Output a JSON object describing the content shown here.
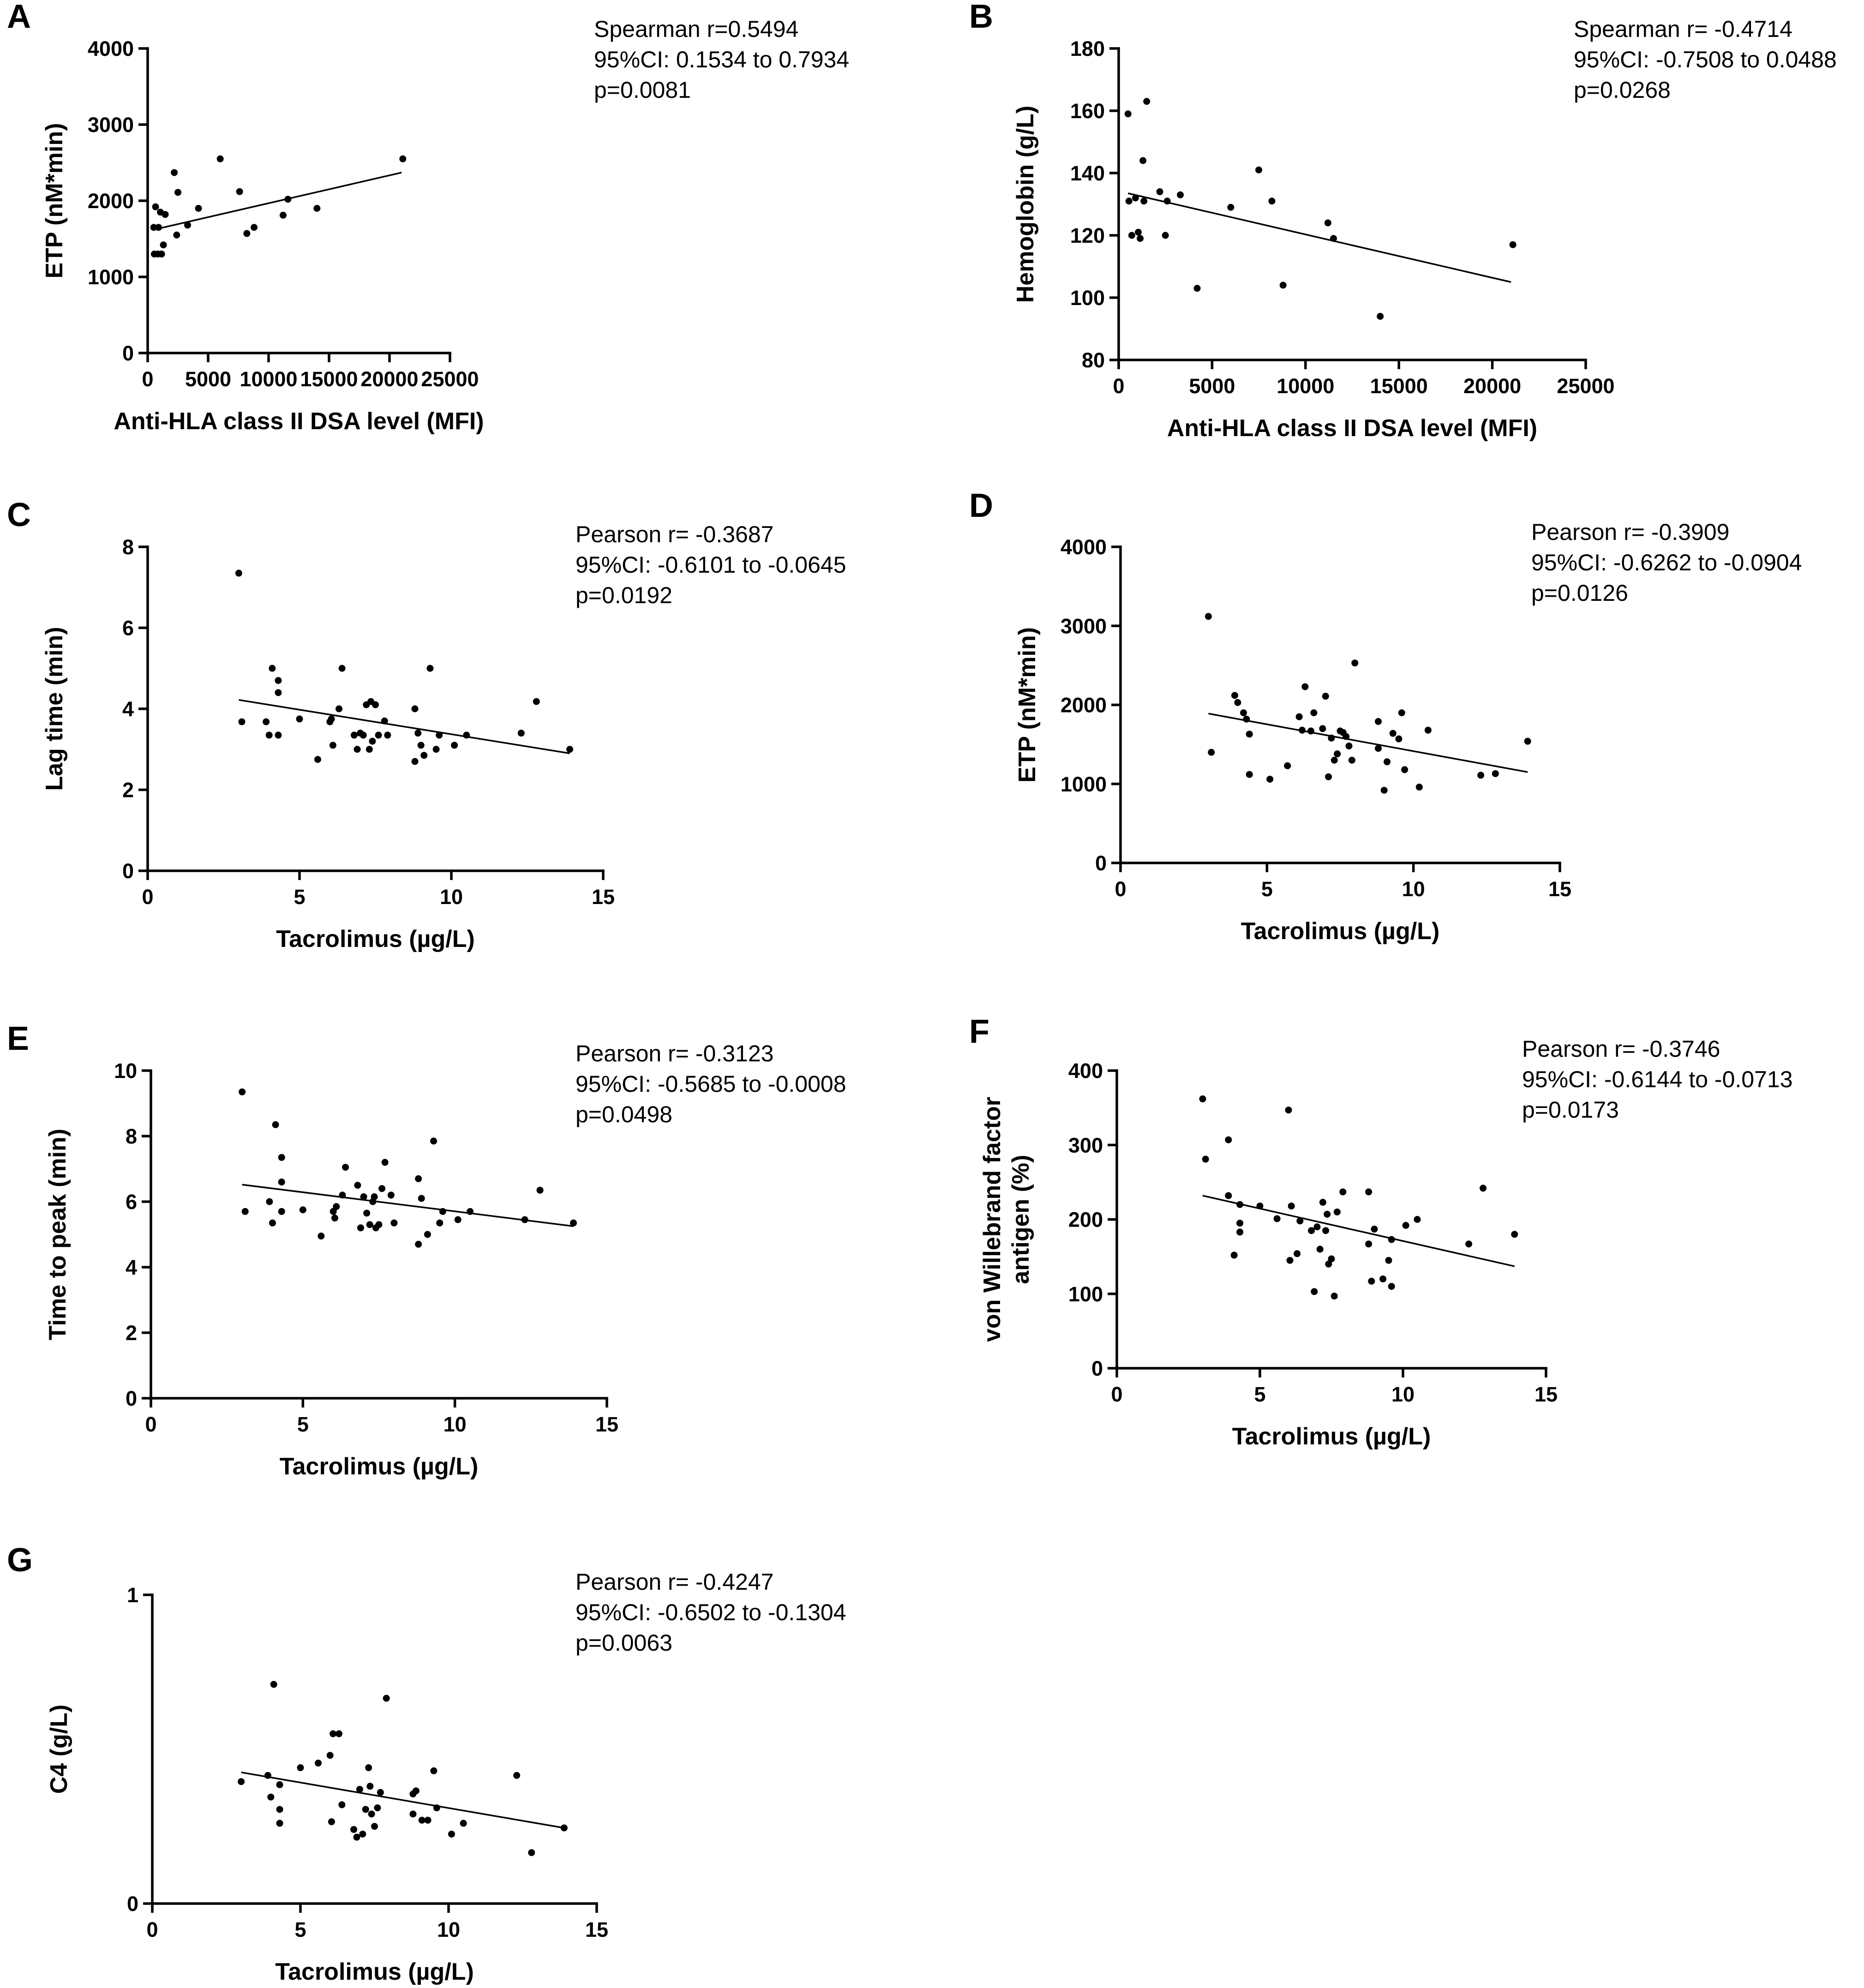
{
  "chart_data": [
    {
      "type": "scatter",
      "panel": "A",
      "xlabel": "Anti-HLA class II DSA level (MFI)",
      "ylabel": "ETP (nM*min)",
      "xlim": [
        0,
        25000
      ],
      "ylim": [
        0,
        4000
      ],
      "xticks": [
        0,
        5000,
        10000,
        15000,
        20000,
        25000
      ],
      "yticks": [
        0,
        1000,
        2000,
        3000,
        4000
      ],
      "stats": [
        "Spearman r=0.5494",
        "95%CI: 0.1534 to 0.7934",
        "p=0.0081"
      ],
      "fit": [
        [
          500,
          1620
        ],
        [
          21000,
          2370
        ]
      ],
      "points": [
        [
          500,
          1650
        ],
        [
          550,
          1300
        ],
        [
          650,
          1920
        ],
        [
          850,
          1300
        ],
        [
          900,
          1650
        ],
        [
          1050,
          1850
        ],
        [
          1150,
          1300
        ],
        [
          1300,
          1420
        ],
        [
          1450,
          1820
        ],
        [
          2200,
          2370
        ],
        [
          2500,
          2110
        ],
        [
          2400,
          1550
        ],
        [
          3300,
          1680
        ],
        [
          4200,
          1900
        ],
        [
          6000,
          2550
        ],
        [
          7600,
          2120
        ],
        [
          8200,
          1570
        ],
        [
          8800,
          1650
        ],
        [
          11200,
          1810
        ],
        [
          11600,
          2020
        ],
        [
          14000,
          1900
        ],
        [
          21100,
          2550
        ]
      ]
    },
    {
      "type": "scatter",
      "panel": "B",
      "xlabel": "Anti-HLA class II DSA level (MFI)",
      "ylabel": "Hemoglobin (g/L)",
      "xlim": [
        0,
        25000
      ],
      "ylim": [
        80,
        180
      ],
      "xticks": [
        0,
        5000,
        10000,
        15000,
        20000,
        25000
      ],
      "yticks": [
        80,
        100,
        120,
        140,
        160,
        180
      ],
      "stats": [
        "Spearman r= -0.4714",
        "95%CI: -0.7508 to 0.0488",
        "p=0.0268"
      ],
      "fit": [
        [
          500,
          133.5
        ],
        [
          21000,
          105
        ]
      ],
      "points": [
        [
          500,
          159
        ],
        [
          550,
          131
        ],
        [
          700,
          120
        ],
        [
          900,
          132
        ],
        [
          1050,
          121
        ],
        [
          1150,
          119
        ],
        [
          1300,
          144
        ],
        [
          1350,
          131
        ],
        [
          1500,
          163
        ],
        [
          2200,
          134
        ],
        [
          2500,
          120
        ],
        [
          2600,
          131
        ],
        [
          3300,
          133
        ],
        [
          4200,
          103
        ],
        [
          6000,
          129
        ],
        [
          7500,
          141
        ],
        [
          8200,
          131
        ],
        [
          8800,
          104
        ],
        [
          11200,
          124
        ],
        [
          11500,
          119
        ],
        [
          14000,
          94
        ],
        [
          21100,
          117
        ]
      ]
    },
    {
      "type": "scatter",
      "panel": "C",
      "xlabel": "Tacrolimus (µg/L)",
      "ylabel": "Lag time (min)",
      "xlim": [
        0,
        15
      ],
      "ylim": [
        0,
        8
      ],
      "xticks": [
        0,
        5,
        10,
        15
      ],
      "yticks": [
        0,
        2,
        4,
        6,
        8
      ],
      "stats": [
        "Pearson r= -0.3687",
        "95%CI: -0.6101 to -0.0645",
        "p=0.0192"
      ],
      "fit": [
        [
          3.0,
          4.22
        ],
        [
          13.9,
          2.9
        ]
      ],
      "points": [
        [
          3.0,
          7.35
        ],
        [
          3.1,
          3.68
        ],
        [
          3.9,
          3.68
        ],
        [
          4.0,
          3.35
        ],
        [
          4.1,
          5.0
        ],
        [
          4.3,
          4.7
        ],
        [
          4.3,
          4.4
        ],
        [
          4.3,
          3.35
        ],
        [
          5.0,
          3.75
        ],
        [
          5.6,
          2.75
        ],
        [
          6.0,
          3.68
        ],
        [
          6.05,
          3.75
        ],
        [
          6.1,
          3.1
        ],
        [
          6.3,
          4.0
        ],
        [
          6.4,
          5.0
        ],
        [
          6.8,
          3.35
        ],
        [
          6.9,
          3.0
        ],
        [
          7.0,
          3.4
        ],
        [
          7.1,
          3.35
        ],
        [
          7.2,
          4.1
        ],
        [
          7.3,
          3.0
        ],
        [
          7.35,
          4.18
        ],
        [
          7.4,
          3.2
        ],
        [
          7.5,
          4.1
        ],
        [
          7.6,
          3.35
        ],
        [
          7.8,
          3.7
        ],
        [
          7.9,
          3.35
        ],
        [
          8.8,
          2.7
        ],
        [
          8.8,
          4.0
        ],
        [
          8.9,
          3.4
        ],
        [
          9.0,
          3.1
        ],
        [
          9.1,
          2.85
        ],
        [
          9.3,
          5.0
        ],
        [
          9.5,
          3.0
        ],
        [
          9.6,
          3.35
        ],
        [
          10.1,
          3.1
        ],
        [
          10.5,
          3.35
        ],
        [
          12.3,
          3.4
        ],
        [
          12.8,
          4.18
        ],
        [
          13.9,
          3.0
        ]
      ]
    },
    {
      "type": "scatter",
      "panel": "D",
      "xlabel": "Tacrolimus (µg/L)",
      "ylabel": "ETP (nM*min)",
      "xlim": [
        0,
        15
      ],
      "ylim": [
        0,
        4000
      ],
      "xticks": [
        0,
        5,
        10,
        15
      ],
      "yticks": [
        0,
        1000,
        2000,
        3000,
        4000
      ],
      "stats": [
        "Pearson r= -0.3909",
        "95%CI: -0.6262 to -0.0904",
        "p=0.0126"
      ],
      "fit": [
        [
          3.0,
          1890
        ],
        [
          13.9,
          1150
        ]
      ],
      "points": [
        [
          3.0,
          3120
        ],
        [
          3.1,
          1400
        ],
        [
          3.9,
          2120
        ],
        [
          4.0,
          2030
        ],
        [
          4.2,
          1900
        ],
        [
          4.3,
          1820
        ],
        [
          4.4,
          1630
        ],
        [
          4.4,
          1120
        ],
        [
          5.1,
          1060
        ],
        [
          5.7,
          1230
        ],
        [
          6.1,
          1850
        ],
        [
          6.2,
          1680
        ],
        [
          6.3,
          2230
        ],
        [
          6.5,
          1670
        ],
        [
          6.6,
          1900
        ],
        [
          6.9,
          1700
        ],
        [
          7.0,
          2110
        ],
        [
          7.1,
          1090
        ],
        [
          7.2,
          1580
        ],
        [
          7.3,
          1300
        ],
        [
          7.4,
          1380
        ],
        [
          7.5,
          1670
        ],
        [
          7.6,
          1650
        ],
        [
          7.7,
          1600
        ],
        [
          7.8,
          1480
        ],
        [
          7.9,
          1300
        ],
        [
          8.0,
          2530
        ],
        [
          8.8,
          1790
        ],
        [
          8.8,
          1450
        ],
        [
          9.0,
          920
        ],
        [
          9.1,
          1280
        ],
        [
          9.3,
          1640
        ],
        [
          9.5,
          1570
        ],
        [
          9.6,
          1900
        ],
        [
          9.7,
          1180
        ],
        [
          10.2,
          960
        ],
        [
          10.5,
          1680
        ],
        [
          12.3,
          1110
        ],
        [
          12.8,
          1130
        ],
        [
          13.9,
          1540
        ]
      ]
    },
    {
      "type": "scatter",
      "panel": "E",
      "xlabel": "Tacrolimus (µg/L)",
      "ylabel": "Time to peak (min)",
      "xlim": [
        0,
        15
      ],
      "ylim": [
        0,
        10
      ],
      "xticks": [
        0,
        5,
        10,
        15
      ],
      "yticks": [
        0,
        2,
        4,
        6,
        8,
        10
      ],
      "stats": [
        "Pearson r= -0.3123",
        "95%CI: -0.5685 to -0.0008",
        "p=0.0498"
      ],
      "fit": [
        [
          3.0,
          6.52
        ],
        [
          13.9,
          5.25
        ]
      ],
      "points": [
        [
          3.0,
          9.35
        ],
        [
          3.1,
          5.7
        ],
        [
          3.9,
          6.0
        ],
        [
          4.0,
          5.35
        ],
        [
          4.1,
          8.35
        ],
        [
          4.3,
          7.35
        ],
        [
          4.3,
          6.6
        ],
        [
          4.3,
          5.7
        ],
        [
          5.0,
          5.75
        ],
        [
          5.6,
          4.95
        ],
        [
          6.0,
          5.7
        ],
        [
          6.05,
          5.5
        ],
        [
          6.1,
          5.85
        ],
        [
          6.3,
          6.2
        ],
        [
          6.4,
          7.05
        ],
        [
          6.8,
          6.5
        ],
        [
          6.9,
          5.2
        ],
        [
          7.0,
          6.15
        ],
        [
          7.1,
          5.65
        ],
        [
          7.2,
          5.3
        ],
        [
          7.3,
          6.0
        ],
        [
          7.35,
          6.15
        ],
        [
          7.4,
          5.2
        ],
        [
          7.5,
          5.3
        ],
        [
          7.6,
          6.4
        ],
        [
          7.7,
          7.2
        ],
        [
          7.9,
          6.2
        ],
        [
          8.0,
          5.35
        ],
        [
          8.8,
          4.7
        ],
        [
          8.8,
          6.7
        ],
        [
          8.9,
          6.1
        ],
        [
          9.1,
          5.0
        ],
        [
          9.3,
          7.85
        ],
        [
          9.5,
          5.35
        ],
        [
          9.6,
          5.7
        ],
        [
          10.1,
          5.45
        ],
        [
          10.5,
          5.7
        ],
        [
          12.3,
          5.45
        ],
        [
          12.8,
          6.35
        ],
        [
          13.9,
          5.35
        ]
      ]
    },
    {
      "type": "scatter",
      "panel": "F",
      "xlabel": "Tacrolimus (µg/L)",
      "ylabel": [
        "von Willebrand factor",
        "antigen (%)"
      ],
      "xlim": [
        0,
        15
      ],
      "ylim": [
        0,
        400
      ],
      "xticks": [
        0,
        5,
        10,
        15
      ],
      "yticks": [
        0,
        100,
        200,
        300,
        400
      ],
      "stats": [
        "Pearson r= -0.3746",
        "95%CI: -0.6144 to -0.0713",
        "p=0.0173"
      ],
      "fit": [
        [
          3.0,
          232
        ],
        [
          13.9,
          137
        ]
      ],
      "points": [
        [
          3.0,
          362
        ],
        [
          3.1,
          281
        ],
        [
          3.9,
          232
        ],
        [
          3.9,
          307
        ],
        [
          4.1,
          152
        ],
        [
          4.3,
          220
        ],
        [
          4.3,
          195
        ],
        [
          4.3,
          183
        ],
        [
          5.0,
          218
        ],
        [
          5.6,
          201
        ],
        [
          6.0,
          347
        ],
        [
          6.05,
          145
        ],
        [
          6.1,
          218
        ],
        [
          6.3,
          154
        ],
        [
          6.4,
          198
        ],
        [
          6.8,
          185
        ],
        [
          6.9,
          103
        ],
        [
          7.0,
          190
        ],
        [
          7.1,
          160
        ],
        [
          7.2,
          223
        ],
        [
          7.3,
          185
        ],
        [
          7.35,
          207
        ],
        [
          7.4,
          140
        ],
        [
          7.5,
          147
        ],
        [
          7.6,
          97
        ],
        [
          7.7,
          210
        ],
        [
          7.9,
          237
        ],
        [
          8.8,
          237
        ],
        [
          8.8,
          167
        ],
        [
          8.9,
          117
        ],
        [
          9.0,
          187
        ],
        [
          9.3,
          120
        ],
        [
          9.5,
          145
        ],
        [
          9.6,
          110
        ],
        [
          9.6,
          173
        ],
        [
          10.1,
          192
        ],
        [
          10.5,
          200
        ],
        [
          12.3,
          167
        ],
        [
          12.8,
          242
        ],
        [
          13.9,
          180
        ]
      ]
    },
    {
      "type": "scatter",
      "panel": "G",
      "xlabel": "Tacrolimus (µg/L)",
      "ylabel": "C4 (g/L)",
      "xlim": [
        0,
        15
      ],
      "ylim": [
        0,
        1
      ],
      "xticks": [
        0,
        5,
        10,
        15
      ],
      "yticks": [
        0,
        1
      ],
      "stats": [
        "Pearson r= -0.4247",
        "95%CI: -0.6502 to -0.1304",
        "p=0.0063"
      ],
      "fit": [
        [
          3.0,
          0.425
        ],
        [
          13.9,
          0.245
        ]
      ],
      "points": [
        [
          3.0,
          0.395
        ],
        [
          3.9,
          0.415
        ],
        [
          4.0,
          0.345
        ],
        [
          4.1,
          0.71
        ],
        [
          4.3,
          0.385
        ],
        [
          4.3,
          0.305
        ],
        [
          4.3,
          0.26
        ],
        [
          5.0,
          0.44
        ],
        [
          5.6,
          0.455
        ],
        [
          6.0,
          0.48
        ],
        [
          6.05,
          0.265
        ],
        [
          6.1,
          0.55
        ],
        [
          6.3,
          0.55
        ],
        [
          6.4,
          0.32
        ],
        [
          6.8,
          0.24
        ],
        [
          6.9,
          0.215
        ],
        [
          7.0,
          0.37
        ],
        [
          7.1,
          0.225
        ],
        [
          7.2,
          0.305
        ],
        [
          7.3,
          0.44
        ],
        [
          7.35,
          0.38
        ],
        [
          7.4,
          0.29
        ],
        [
          7.5,
          0.25
        ],
        [
          7.6,
          0.31
        ],
        [
          7.7,
          0.36
        ],
        [
          7.9,
          0.665
        ],
        [
          8.8,
          0.29
        ],
        [
          8.8,
          0.355
        ],
        [
          8.9,
          0.365
        ],
        [
          9.1,
          0.27
        ],
        [
          9.3,
          0.27
        ],
        [
          9.5,
          0.43
        ],
        [
          9.6,
          0.31
        ],
        [
          10.1,
          0.225
        ],
        [
          10.5,
          0.26
        ],
        [
          12.3,
          0.415
        ],
        [
          12.8,
          0.165
        ],
        [
          13.9,
          0.245
        ]
      ]
    }
  ]
}
